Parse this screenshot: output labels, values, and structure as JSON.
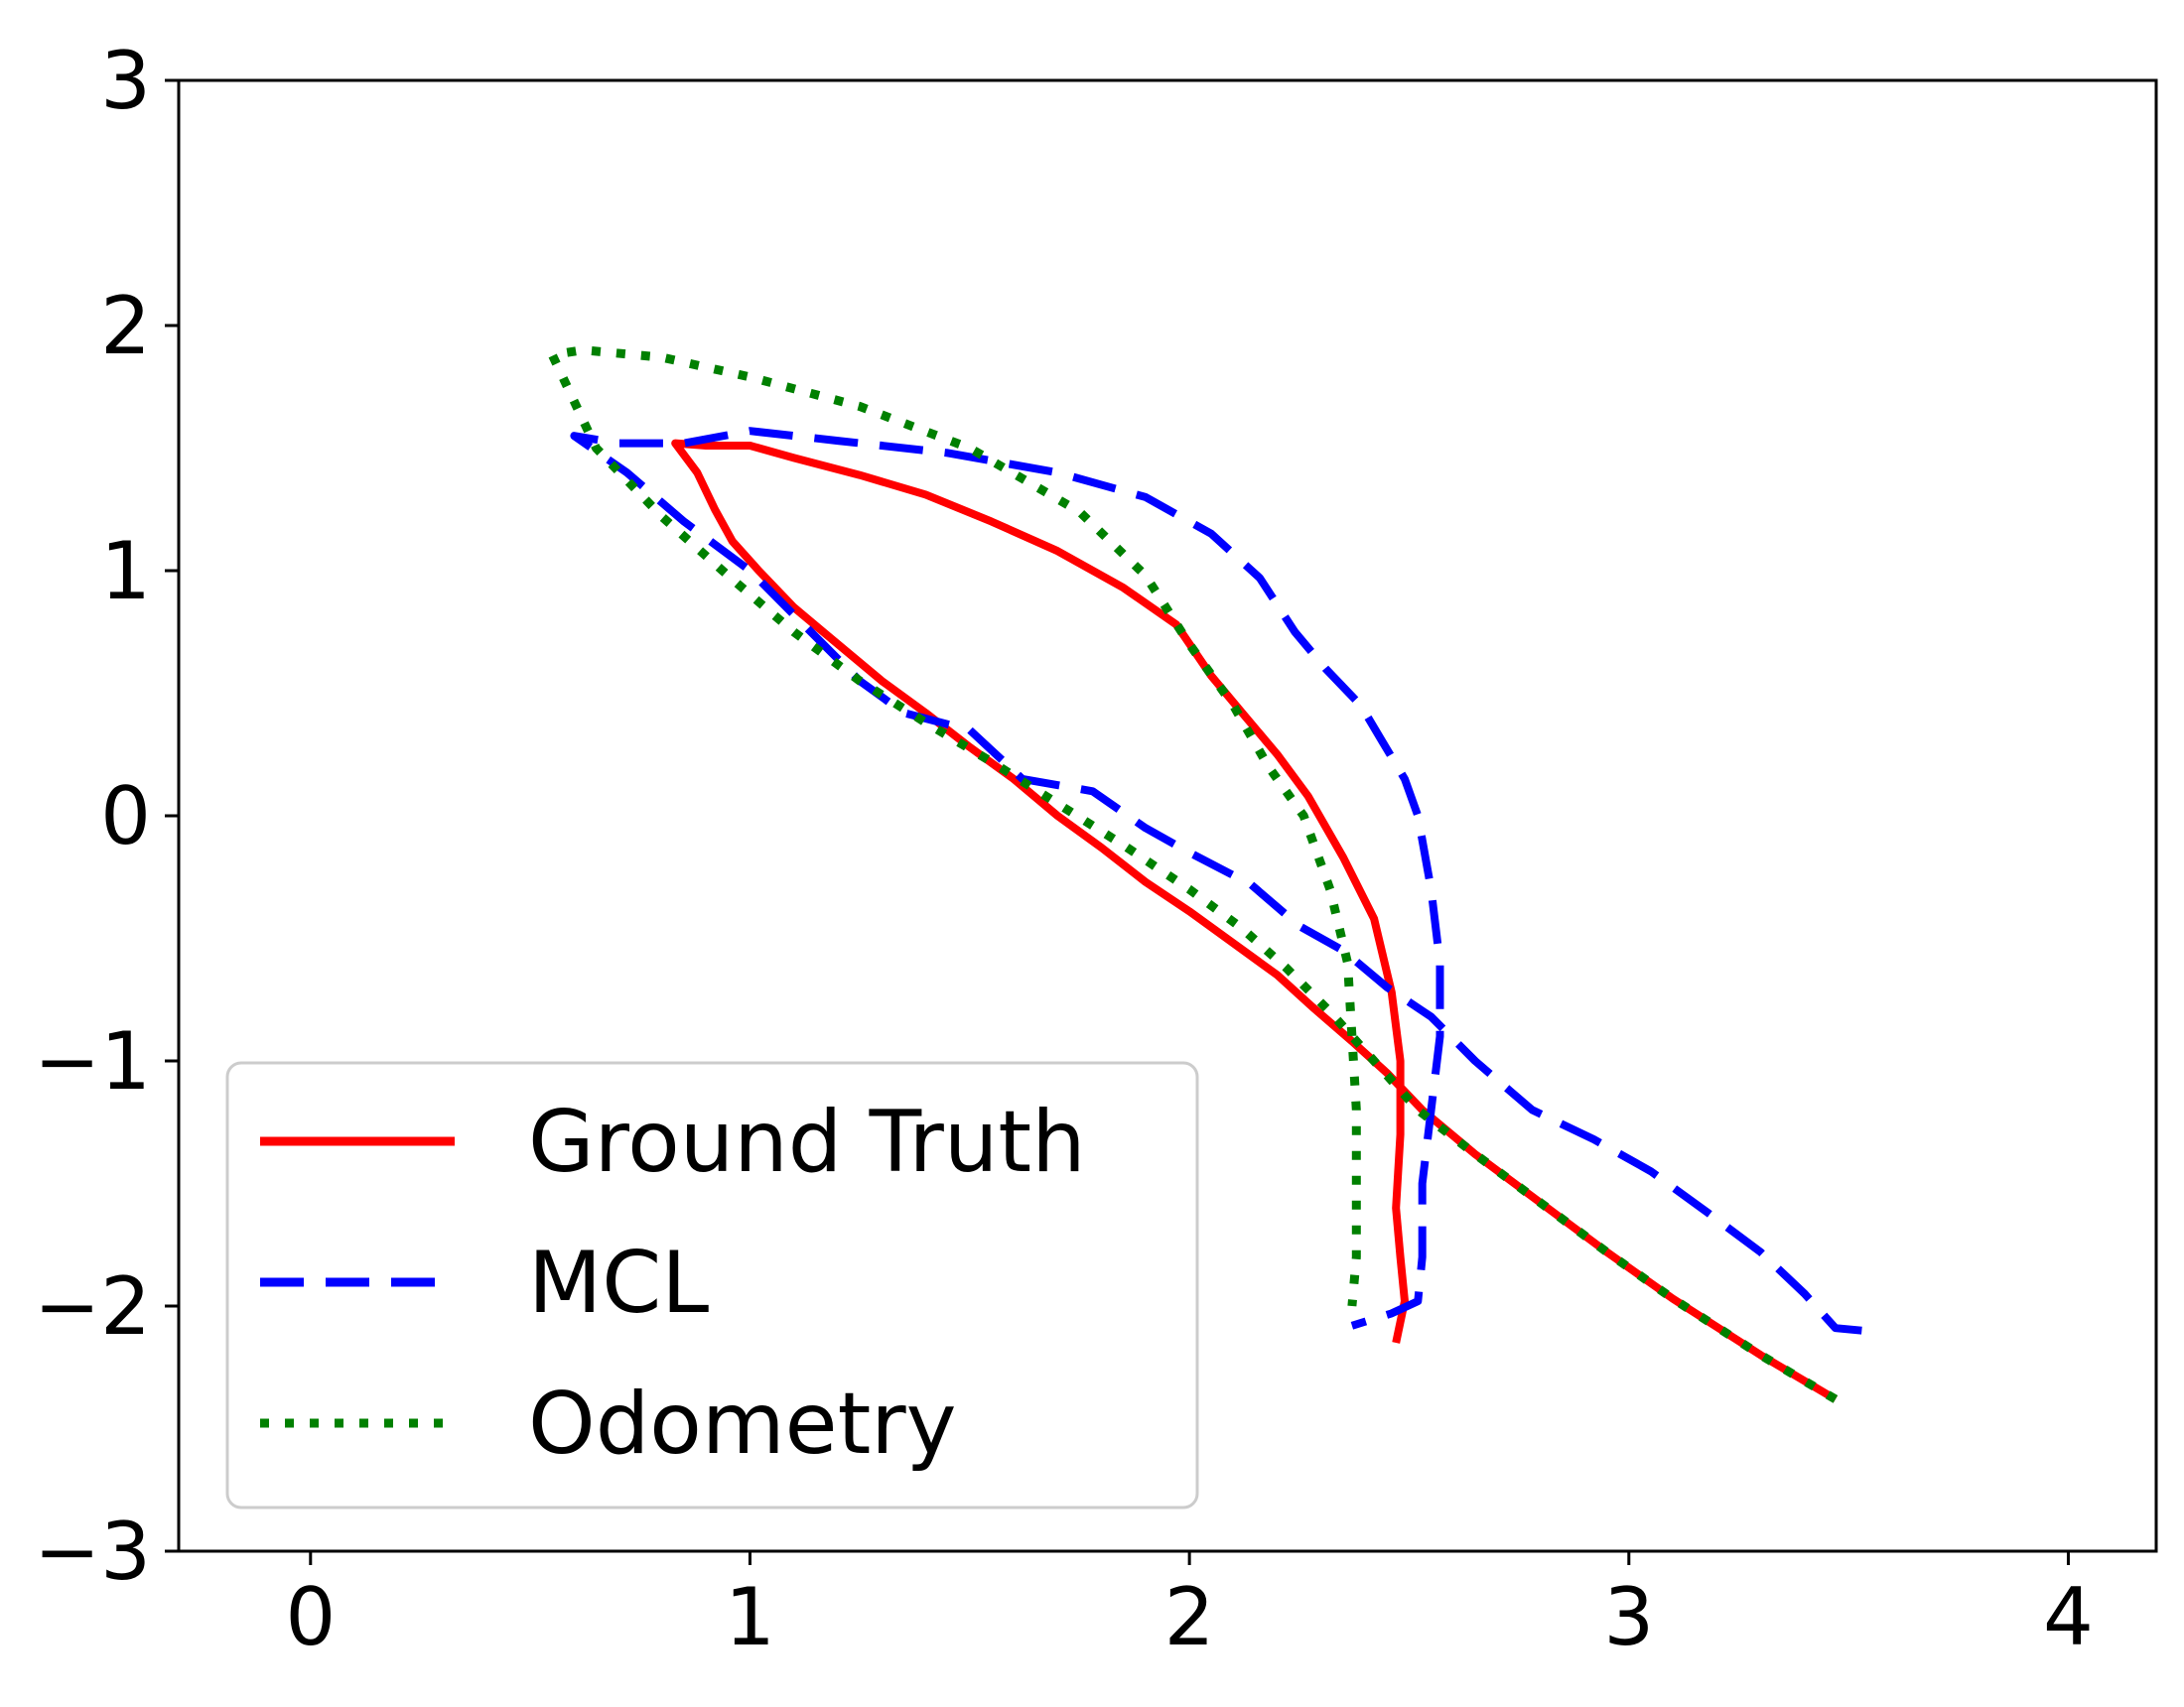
{
  "chart_data": {
    "type": "line",
    "title": "",
    "xlabel": "",
    "ylabel": "",
    "xlim": [
      -0.3,
      4.2
    ],
    "ylim": [
      -3,
      3
    ],
    "x_ticks": [
      0,
      1,
      2,
      3,
      4
    ],
    "y_ticks": [
      -3,
      -2,
      -1,
      0,
      1,
      2,
      3
    ],
    "x_tick_labels": [
      "0",
      "1",
      "2",
      "3",
      "4"
    ],
    "y_tick_labels": [
      "−3",
      "−2",
      "−1",
      "0",
      "1",
      "2",
      "3"
    ],
    "grid": false,
    "legend_position": "lower-left",
    "series": [
      {
        "name": "Ground Truth",
        "color": "#ff0000",
        "style": "solid",
        "x": [
          3.47,
          3.3,
          3.1,
          2.95,
          2.8,
          2.65,
          2.53,
          2.45,
          2.37,
          2.28,
          2.2,
          2.1,
          2.0,
          1.9,
          1.8,
          1.7,
          1.6,
          1.5,
          1.4,
          1.3,
          1.2,
          1.1,
          1.02,
          0.96,
          0.92,
          0.88,
          0.83,
          0.9,
          1.0,
          1.1,
          1.25,
          1.4,
          1.55,
          1.7,
          1.85,
          1.97,
          2.05,
          2.12,
          2.2,
          2.27,
          2.35,
          2.42,
          2.46,
          2.48,
          2.48,
          2.47,
          2.48,
          2.49,
          2.47
        ],
        "y": [
          -2.38,
          -2.2,
          -1.97,
          -1.78,
          -1.58,
          -1.38,
          -1.2,
          -1.05,
          -0.92,
          -0.78,
          -0.65,
          -0.52,
          -0.39,
          -0.27,
          -0.13,
          0.0,
          0.15,
          0.28,
          0.42,
          0.55,
          0.7,
          0.85,
          1.0,
          1.12,
          1.25,
          1.4,
          1.52,
          1.51,
          1.51,
          1.46,
          1.39,
          1.31,
          1.2,
          1.08,
          0.93,
          0.78,
          0.57,
          0.42,
          0.25,
          0.08,
          -0.17,
          -0.42,
          -0.72,
          -1.0,
          -1.3,
          -1.6,
          -1.8,
          -1.98,
          -2.15
        ]
      },
      {
        "name": "MCL",
        "color": "#0000ff",
        "style": "dashed",
        "x": [
          3.53,
          3.47,
          3.4,
          3.3,
          3.18,
          3.05,
          2.92,
          2.78,
          2.65,
          2.55,
          2.45,
          2.35,
          2.25,
          2.14,
          2.0,
          1.9,
          1.78,
          1.62,
          1.5,
          1.35,
          1.25,
          1.1,
          1.0,
          0.85,
          0.72,
          0.6,
          0.7,
          0.85,
          1.0,
          1.2,
          1.45,
          1.7,
          1.9,
          2.05,
          2.16,
          2.24,
          2.31,
          2.39,
          2.44,
          2.49,
          2.52,
          2.55,
          2.57,
          2.57,
          2.55,
          2.53,
          2.53,
          2.52,
          2.46,
          2.37
        ],
        "y": [
          -2.1,
          -2.09,
          -1.95,
          -1.78,
          -1.62,
          -1.45,
          -1.32,
          -1.2,
          -1.0,
          -0.82,
          -0.7,
          -0.55,
          -0.45,
          -0.28,
          -0.15,
          -0.05,
          0.1,
          0.15,
          0.35,
          0.42,
          0.55,
          0.82,
          1.0,
          1.2,
          1.4,
          1.55,
          1.52,
          1.52,
          1.57,
          1.53,
          1.48,
          1.4,
          1.3,
          1.15,
          0.97,
          0.75,
          0.6,
          0.45,
          0.3,
          0.15,
          0.0,
          -0.3,
          -0.6,
          -0.9,
          -1.2,
          -1.5,
          -1.8,
          -1.98,
          -2.03,
          -2.08
        ]
      },
      {
        "name": "Odometry",
        "color": "#008000",
        "style": "dotted",
        "x": [
          3.47,
          3.3,
          3.1,
          2.95,
          2.8,
          2.65,
          2.52,
          2.42,
          2.32,
          2.22,
          2.12,
          2.0,
          1.85,
          1.7,
          1.55,
          1.4,
          1.25,
          1.1,
          0.95,
          0.8,
          0.65,
          0.55,
          0.62,
          0.8,
          1.0,
          1.25,
          1.5,
          1.75,
          1.9,
          2.0,
          2.1,
          2.18,
          2.26,
          2.32,
          2.36,
          2.37,
          2.38,
          2.38,
          2.38,
          2.37
        ],
        "y": [
          -2.38,
          -2.2,
          -1.97,
          -1.78,
          -1.58,
          -1.38,
          -1.2,
          -1.0,
          -0.8,
          -0.62,
          -0.46,
          -0.3,
          -0.12,
          0.05,
          0.22,
          0.38,
          0.55,
          0.75,
          0.98,
          1.22,
          1.5,
          1.88,
          1.9,
          1.87,
          1.79,
          1.67,
          1.5,
          1.24,
          0.98,
          0.7,
          0.45,
          0.2,
          0.0,
          -0.3,
          -0.6,
          -0.9,
          -1.2,
          -1.5,
          -1.8,
          -2.0
        ]
      }
    ]
  }
}
